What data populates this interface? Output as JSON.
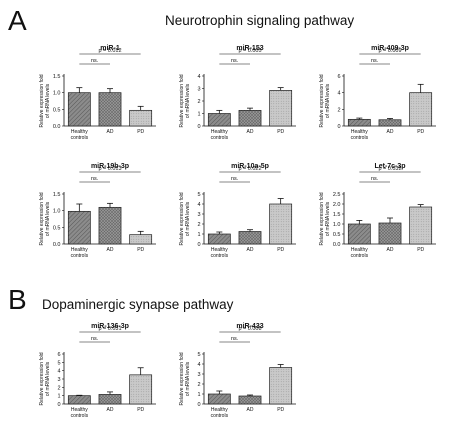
{
  "panels": {
    "a": {
      "letter": "A",
      "title": "Neurotrophin signaling pathway"
    },
    "b": {
      "letter": "B",
      "title": "Dopaminergic synapse pathway"
    }
  },
  "chart_data": [
    {
      "type": "bar",
      "title": "miR-1",
      "categories": [
        "Healthy controls",
        "AD",
        "PD"
      ],
      "values": [
        1.0,
        1.0,
        0.47
      ],
      "errors": [
        0.15,
        0.12,
        0.12
      ],
      "ylim": [
        0,
        1.5
      ],
      "yticks": [
        "0.0",
        "0.5",
        "1.0",
        "1.5"
      ],
      "ylabel": [
        "Relative expression fold",
        "of mRNA levels"
      ],
      "annotations": [
        {
          "text": "ns.",
          "from": 0,
          "to": 1
        },
        {
          "text": "p = 0.012",
          "from": 0,
          "to": 2
        }
      ]
    },
    {
      "type": "bar",
      "title": "miR-153",
      "categories": [
        "Healthy controls",
        "AD",
        "PD"
      ],
      "values": [
        1.0,
        1.25,
        2.85
      ],
      "errors": [
        0.25,
        0.18,
        0.22
      ],
      "ylim": [
        0,
        4
      ],
      "yticks": [
        "0",
        "1",
        "2",
        "3",
        "4"
      ],
      "ylabel": [
        "Relative expression fold",
        "of mRNA levels"
      ],
      "annotations": [
        {
          "text": "ns.",
          "from": 0,
          "to": 1
        },
        {
          "text": "p = 0.005",
          "from": 0,
          "to": 2
        }
      ]
    },
    {
      "type": "bar",
      "title": "miR-409-3p",
      "categories": [
        "Healthy controls",
        "AD",
        "PD"
      ],
      "values": [
        0.8,
        0.75,
        4.0
      ],
      "errors": [
        0.15,
        0.15,
        1.0
      ],
      "ylim": [
        0,
        6
      ],
      "yticks": [
        "0",
        "2",
        "4",
        "6"
      ],
      "ylabel": [
        "Relative expression fold",
        "of mRNA levels"
      ],
      "annotations": [
        {
          "text": "ns.",
          "from": 0,
          "to": 1
        },
        {
          "text": "p = 0.009",
          "from": 0,
          "to": 2
        }
      ]
    },
    {
      "type": "bar",
      "title": "miR-19b-3p",
      "categories": [
        "Healthy controls",
        "AD",
        "PD"
      ],
      "values": [
        0.98,
        1.1,
        0.28
      ],
      "errors": [
        0.22,
        0.12,
        0.1
      ],
      "ylim": [
        0,
        1.5
      ],
      "yticks": [
        "0.0",
        "0.5",
        "1.0",
        "1.5"
      ],
      "ylabel": [
        "Relative expression fold",
        "of mRNA levels"
      ],
      "annotations": [
        {
          "text": "ns.",
          "from": 0,
          "to": 1
        },
        {
          "text": "p = 0.013",
          "from": 0,
          "to": 2
        }
      ]
    },
    {
      "type": "bar",
      "title": "miR-10a-5p",
      "categories": [
        "Healthy controls",
        "AD",
        "PD"
      ],
      "values": [
        1.0,
        1.25,
        4.0
      ],
      "errors": [
        0.2,
        0.18,
        0.55
      ],
      "ylim": [
        0,
        5
      ],
      "yticks": [
        "0",
        "1",
        "2",
        "3",
        "4",
        "5"
      ],
      "ylabel": [
        "Relative expression fold",
        "of mRNA levels"
      ],
      "annotations": [
        {
          "text": "ns.",
          "from": 0,
          "to": 1
        },
        {
          "text": "p = 0.022",
          "from": 0,
          "to": 2
        }
      ]
    },
    {
      "type": "bar",
      "title": "Let-7c-3p",
      "categories": [
        "Healthy controls",
        "AD",
        "PD"
      ],
      "values": [
        1.0,
        1.05,
        1.85
      ],
      "errors": [
        0.18,
        0.25,
        0.12
      ],
      "ylim": [
        0,
        2.5
      ],
      "yticks": [
        "0.0",
        "0.5",
        "1.0",
        "1.5",
        "2.0",
        "2.5"
      ],
      "ylabel": [
        "Relative expression fold",
        "of mRNA levels"
      ],
      "annotations": [
        {
          "text": "ns.",
          "from": 0,
          "to": 1
        },
        {
          "text": "p = 0.032",
          "from": 0,
          "to": 2
        }
      ]
    },
    {
      "type": "bar",
      "title": "miR-136-3p",
      "categories": [
        "Healthy controls",
        "AD",
        "PD"
      ],
      "values": [
        1.0,
        1.15,
        3.5
      ],
      "errors": [
        0.05,
        0.3,
        0.85
      ],
      "ylim": [
        0,
        6
      ],
      "yticks": [
        "0",
        "1",
        "2",
        "3",
        "4",
        "5",
        "6"
      ],
      "ylabel": [
        "Relative expression fold",
        "of mRNA levels"
      ],
      "annotations": [
        {
          "text": "ns.",
          "from": 0,
          "to": 1
        },
        {
          "text": "p = 0.031",
          "from": 0,
          "to": 2
        }
      ]
    },
    {
      "type": "bar",
      "title": "miR-433",
      "categories": [
        "Healthy controls",
        "AD",
        "PD"
      ],
      "values": [
        1.0,
        0.8,
        3.65
      ],
      "errors": [
        0.3,
        0.1,
        0.3
      ],
      "ylim": [
        0,
        5
      ],
      "yticks": [
        "0",
        "1",
        "2",
        "3",
        "4",
        "5"
      ],
      "ylabel": [
        "Relative expression fold",
        "of mRNA levels"
      ],
      "annotations": [
        {
          "text": "ns.",
          "from": 0,
          "to": 1
        },
        {
          "text": "p = 0.008",
          "from": 0,
          "to": 2
        }
      ]
    }
  ]
}
